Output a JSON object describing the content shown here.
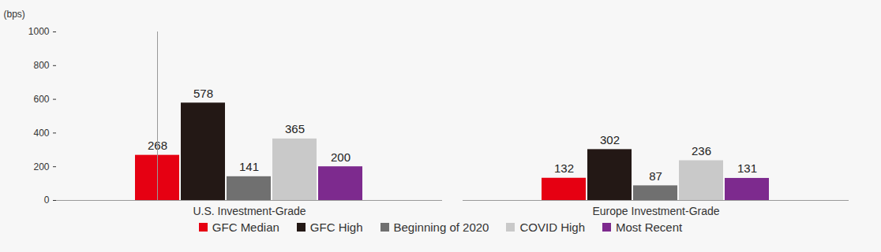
{
  "chart_data": {
    "type": "bar",
    "ylabel": "(bps)",
    "categories": [
      "U.S. Investment-Grade",
      "Europe Investment-Grade"
    ],
    "series": [
      {
        "name": "GFC Median",
        "color": "#e60012",
        "values": [
          268,
          132
        ]
      },
      {
        "name": "GFC High",
        "color": "#231815",
        "values": [
          578,
          302
        ]
      },
      {
        "name": "Beginning of 2020",
        "color": "#707070",
        "values": [
          141,
          87
        ]
      },
      {
        "name": "COVID High",
        "color": "#c9c9c9",
        "values": [
          365,
          236
        ]
      },
      {
        "name": "Most Recent",
        "color": "#7d2a8e",
        "values": [
          200,
          131
        ]
      }
    ],
    "ylim": [
      0,
      1000
    ],
    "yticks": [
      0,
      200,
      400,
      600,
      800,
      1000
    ],
    "grid": false,
    "data_labels": true,
    "legend": "bottom"
  }
}
